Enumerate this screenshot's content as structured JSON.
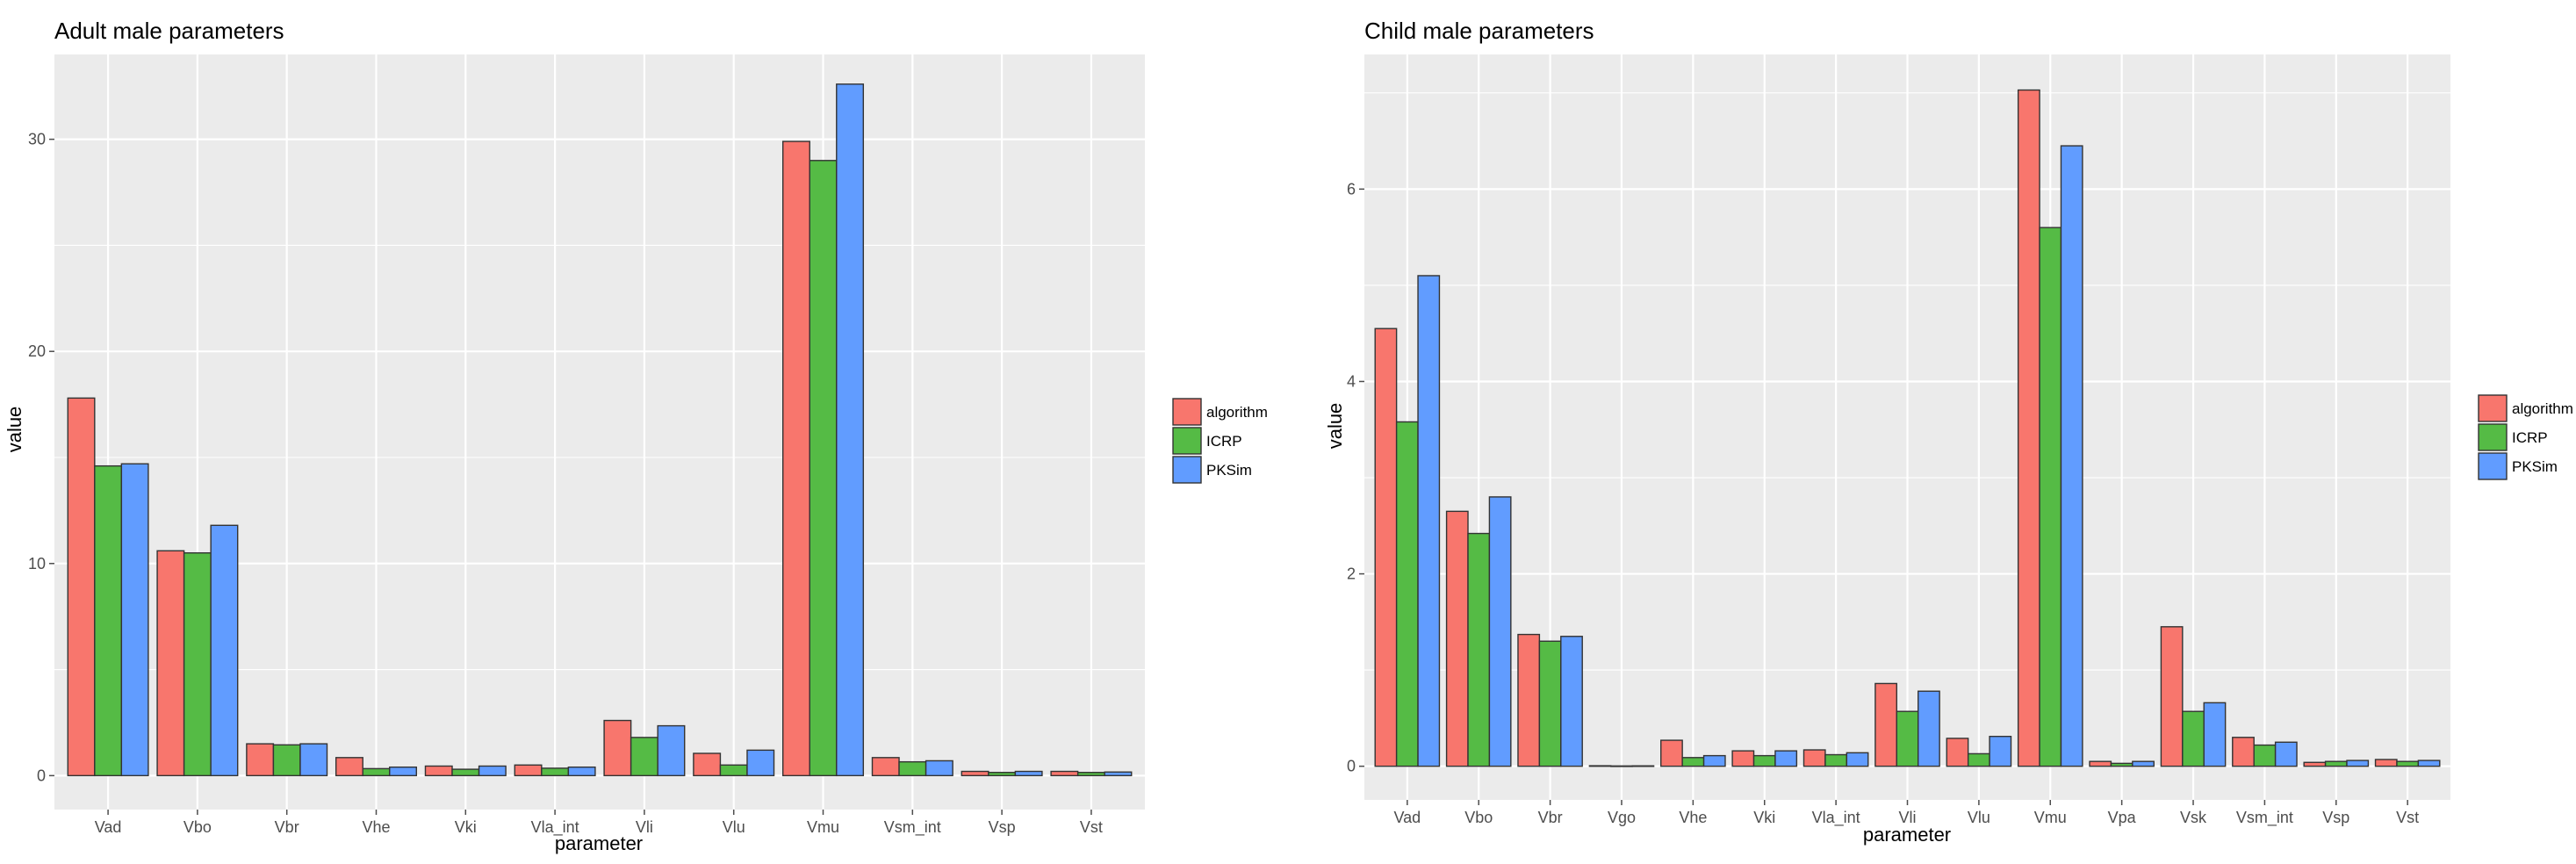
{
  "legend": {
    "entries": [
      {
        "name": "algorithm",
        "color": "#F8766D"
      },
      {
        "name": "ICRP",
        "color": "#55BB45"
      },
      {
        "name": "PKSim",
        "color": "#619CFF"
      }
    ],
    "placement": "right"
  },
  "colors": {
    "panel": "#EBEBEB",
    "grid": "#FFFFFF",
    "bar_outline": "#333333"
  },
  "chart_data": [
    {
      "type": "bar",
      "title": "Adult male parameters",
      "xlabel": "parameter",
      "ylabel": "value",
      "ylim": [
        -1.6,
        34
      ],
      "yticks": [
        0,
        10,
        20,
        30
      ],
      "grid": true,
      "categories": [
        "Vad",
        "Vbo",
        "Vbr",
        "Vhe",
        "Vki",
        "Vla_int",
        "Vli",
        "Vlu",
        "Vmu",
        "Vsm_int",
        "Vsp",
        "Vst"
      ],
      "series": [
        {
          "name": "algorithm",
          "values": [
            17.8,
            10.6,
            1.5,
            0.85,
            0.45,
            0.5,
            2.6,
            1.05,
            29.9,
            0.85,
            0.2,
            0.2
          ]
        },
        {
          "name": "ICRP",
          "values": [
            14.6,
            10.5,
            1.45,
            0.33,
            0.3,
            0.35,
            1.8,
            0.5,
            29.0,
            0.65,
            0.15,
            0.15
          ]
        },
        {
          "name": "PKSim",
          "values": [
            14.7,
            11.8,
            1.5,
            0.4,
            0.45,
            0.4,
            2.35,
            1.2,
            32.6,
            0.7,
            0.2,
            0.17
          ]
        }
      ]
    },
    {
      "type": "bar",
      "title": "Child male parameters",
      "xlabel": "parameter",
      "ylabel": "value",
      "ylim": [
        -0.35,
        7.4
      ],
      "yticks": [
        0,
        2,
        4,
        6
      ],
      "grid": true,
      "categories": [
        "Vad",
        "Vbo",
        "Vbr",
        "Vgo",
        "Vhe",
        "Vki",
        "Vla_int",
        "Vli",
        "Vlu",
        "Vmu",
        "Vpa",
        "Vsk",
        "Vsm_int",
        "Vsp",
        "Vst"
      ],
      "series": [
        {
          "name": "algorithm",
          "values": [
            4.55,
            2.65,
            1.37,
            0.005,
            0.27,
            0.16,
            0.17,
            0.86,
            0.29,
            7.03,
            0.05,
            1.45,
            0.3,
            0.04,
            0.07
          ]
        },
        {
          "name": "ICRP",
          "values": [
            3.58,
            2.42,
            1.3,
            0.003,
            0.09,
            0.11,
            0.12,
            0.57,
            0.13,
            5.6,
            0.03,
            0.57,
            0.22,
            0.05,
            0.05
          ]
        },
        {
          "name": "PKSim",
          "values": [
            5.1,
            2.8,
            1.35,
            0.004,
            0.11,
            0.16,
            0.14,
            0.78,
            0.31,
            6.45,
            0.05,
            0.66,
            0.25,
            0.06,
            0.06
          ]
        }
      ]
    }
  ]
}
